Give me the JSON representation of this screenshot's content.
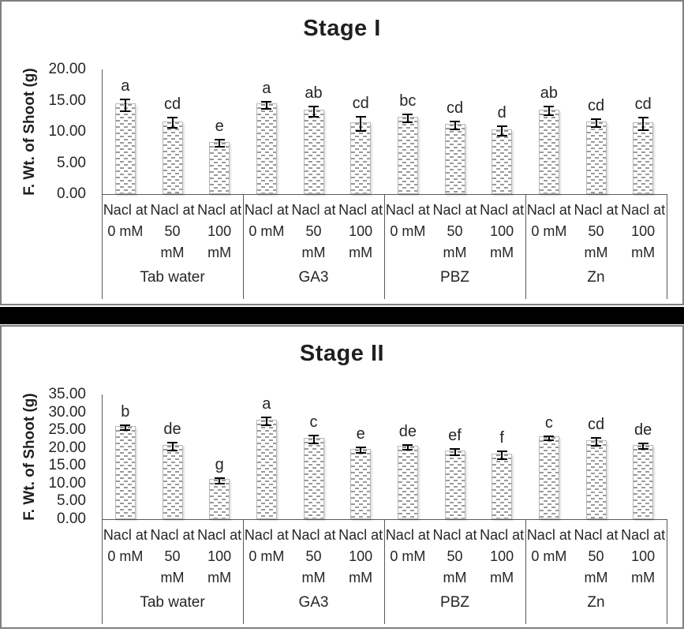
{
  "figure": {
    "background": "#ffffff",
    "frame_color": "#7f7f7f",
    "separator_color": "#000000",
    "axis_line_color": "#595959",
    "bar_dash_color": "#9a9a9a",
    "bar_border_color": "#b7b7b7",
    "error_bar_color": "#000000"
  },
  "chart_data": [
    {
      "type": "bar",
      "title": "Stage I",
      "xlabel": "",
      "ylabel": "F. Wt. of Shoot (g)",
      "ylim": [
        0,
        20
      ],
      "yticks": [
        0,
        5,
        10,
        15,
        20
      ],
      "ytick_labels": [
        "0.00",
        "5.00",
        "10.00",
        "15.00",
        "20.00"
      ],
      "grid": false,
      "legend": null,
      "bar_style": "white with gray dashed pattern fill, error bars, significance letters above",
      "groups": [
        {
          "label": "Tab water",
          "bars": [
            {
              "category": "Nacl at 0 mM",
              "category_lines": [
                "Nacl at",
                "0 mM"
              ],
              "value": 14.5,
              "error": 0.8,
              "sig_letter": "a"
            },
            {
              "category": "Nacl at 50 mM",
              "category_lines": [
                "Nacl at",
                "50",
                "mM"
              ],
              "value": 11.7,
              "error": 0.7,
              "sig_letter": "cd"
            },
            {
              "category": "Nacl at 100 mM",
              "category_lines": [
                "Nacl at",
                "100",
                "mM"
              ],
              "value": 8.4,
              "error": 0.4,
              "sig_letter": "e"
            }
          ]
        },
        {
          "label": "GA3",
          "bars": [
            {
              "category": "Nacl at 0 mM",
              "category_lines": [
                "Nacl at",
                "0 mM"
              ],
              "value": 14.5,
              "error": 0.5,
              "sig_letter": "a"
            },
            {
              "category": "Nacl at 50 mM",
              "category_lines": [
                "Nacl at",
                "50",
                "mM"
              ],
              "value": 13.5,
              "error": 0.7,
              "sig_letter": "ab"
            },
            {
              "category": "Nacl at 100 mM",
              "category_lines": [
                "Nacl at",
                "100",
                "mM"
              ],
              "value": 11.5,
              "error": 1.0,
              "sig_letter": "cd"
            }
          ]
        },
        {
          "label": "PBZ",
          "bars": [
            {
              "category": "Nacl at 0 mM",
              "category_lines": [
                "Nacl at",
                "0 mM"
              ],
              "value": 12.4,
              "error": 0.5,
              "sig_letter": "bc"
            },
            {
              "category": "Nacl at 50 mM",
              "category_lines": [
                "Nacl at",
                "50",
                "mM"
              ],
              "value": 11.3,
              "error": 0.5,
              "sig_letter": "cd"
            },
            {
              "category": "Nacl at 100 mM",
              "category_lines": [
                "Nacl at",
                "100",
                "mM"
              ],
              "value": 10.4,
              "error": 0.6,
              "sig_letter": "d"
            }
          ]
        },
        {
          "label": "Zn",
          "bars": [
            {
              "category": "Nacl at 0 mM",
              "category_lines": [
                "Nacl at",
                "0 mM"
              ],
              "value": 13.6,
              "error": 0.6,
              "sig_letter": "ab"
            },
            {
              "category": "Nacl at 50 mM",
              "category_lines": [
                "Nacl at",
                "50",
                "mM"
              ],
              "value": 11.6,
              "error": 0.5,
              "sig_letter": "cd"
            },
            {
              "category": "Nacl at 100 mM",
              "category_lines": [
                "Nacl at",
                "100",
                "mM"
              ],
              "value": 11.5,
              "error": 0.9,
              "sig_letter": "cd"
            }
          ]
        }
      ]
    },
    {
      "type": "bar",
      "title": "Stage II",
      "xlabel": "",
      "ylabel": "F. Wt. of Shoot (g)",
      "ylim": [
        0,
        35
      ],
      "yticks": [
        0,
        5,
        10,
        15,
        20,
        25,
        30,
        35
      ],
      "ytick_labels": [
        "0.00",
        "5.00",
        "10.00",
        "15.00",
        "20.00",
        "25.00",
        "30.00",
        "35.00"
      ],
      "grid": false,
      "legend": null,
      "bar_style": "white with gray dashed pattern fill, error bars, significance letters above",
      "groups": [
        {
          "label": "Tab water",
          "bars": [
            {
              "category": "Nacl at 0 mM",
              "category_lines": [
                "Nacl at",
                "0 mM"
              ],
              "value": 26.2,
              "error": 0.4,
              "sig_letter": "b"
            },
            {
              "category": "Nacl at 50 mM",
              "category_lines": [
                "Nacl at",
                "50",
                "mM"
              ],
              "value": 20.8,
              "error": 0.8,
              "sig_letter": "de"
            },
            {
              "category": "Nacl at 100 mM",
              "category_lines": [
                "Nacl at",
                "100",
                "mM"
              ],
              "value": 11.2,
              "error": 0.5,
              "sig_letter": "g"
            }
          ]
        },
        {
          "label": "GA3",
          "bars": [
            {
              "category": "Nacl at 0 mM",
              "category_lines": [
                "Nacl at",
                "0 mM"
              ],
              "value": 28.0,
              "error": 0.9,
              "sig_letter": "a"
            },
            {
              "category": "Nacl at 50 mM",
              "category_lines": [
                "Nacl at",
                "50",
                "mM"
              ],
              "value": 22.8,
              "error": 0.9,
              "sig_letter": "c"
            },
            {
              "category": "Nacl at 100 mM",
              "category_lines": [
                "Nacl at",
                "100",
                "mM"
              ],
              "value": 19.8,
              "error": 0.6,
              "sig_letter": "e"
            }
          ]
        },
        {
          "label": "PBZ",
          "bars": [
            {
              "category": "Nacl at 0 mM",
              "category_lines": [
                "Nacl at",
                "0 mM"
              ],
              "value": 20.6,
              "error": 0.5,
              "sig_letter": "de"
            },
            {
              "category": "Nacl at 50 mM",
              "category_lines": [
                "Nacl at",
                "50",
                "mM"
              ],
              "value": 19.3,
              "error": 0.7,
              "sig_letter": "ef"
            },
            {
              "category": "Nacl at 100 mM",
              "category_lines": [
                "Nacl at",
                "100",
                "mM"
              ],
              "value": 18.4,
              "error": 0.9,
              "sig_letter": "f"
            }
          ]
        },
        {
          "label": "Zn",
          "bars": [
            {
              "category": "Nacl at 0 mM",
              "category_lines": [
                "Nacl at",
                "0 mM"
              ],
              "value": 23.2,
              "error": 0.3,
              "sig_letter": "c"
            },
            {
              "category": "Nacl at 50 mM",
              "category_lines": [
                "Nacl at",
                "50",
                "mM"
              ],
              "value": 22.2,
              "error": 0.9,
              "sig_letter": "cd"
            },
            {
              "category": "Nacl at 100 mM",
              "category_lines": [
                "Nacl at",
                "100",
                "mM"
              ],
              "value": 20.9,
              "error": 0.5,
              "sig_letter": "de"
            }
          ]
        }
      ]
    }
  ]
}
